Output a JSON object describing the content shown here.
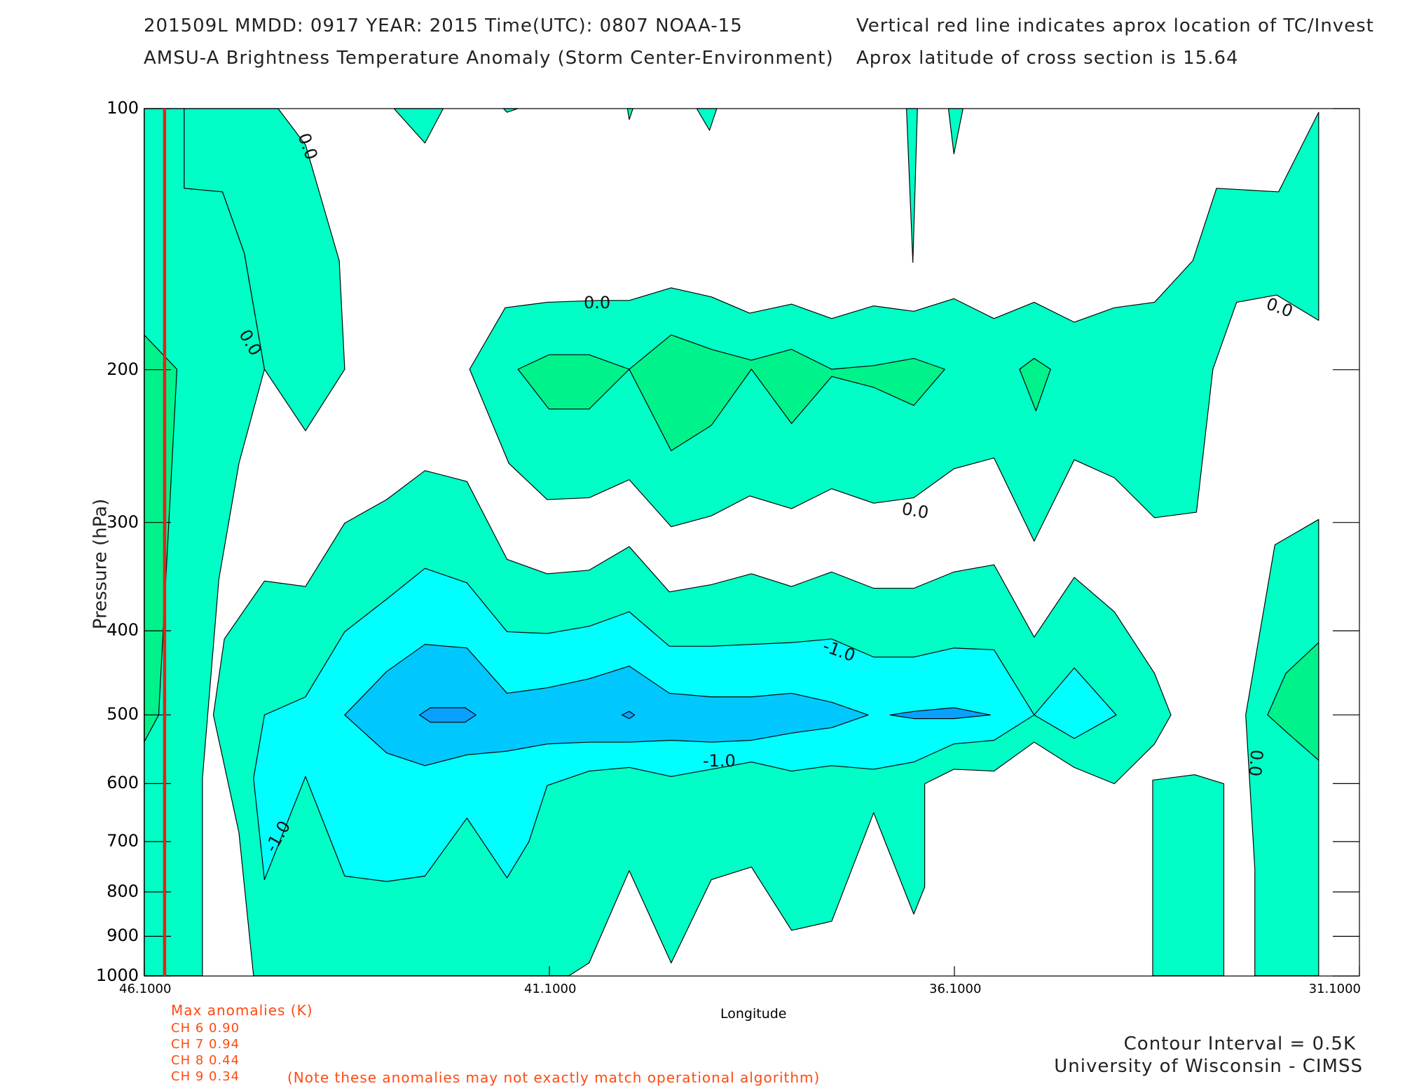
{
  "header": {
    "line1_left": "201509L  MMDD: 0917 YEAR: 2015 Time(UTC): 0807 NOAA-15",
    "line2_left": "AMSU-A Brightness Temperature Anomaly (Storm Center-Environment)",
    "line1_right": "Vertical red line indicates aprox location of TC/Invest",
    "line2_right": "Aprox latitude of cross section is 15.64"
  },
  "chart_data": {
    "type": "contour",
    "title": "AMSU-A Brightness Temperature Anomaly (Storm Center-Environment)",
    "xlabel": "Longitude",
    "ylabel": "Pressure (hPa)",
    "xlim": [
      46.1,
      31.1
    ],
    "ylim": [
      1000,
      100
    ],
    "y_scale": "log",
    "x_ticks": [
      "46.1000",
      "41.1000",
      "36.1000",
      "31.1000"
    ],
    "y_ticks": [
      "100",
      "200",
      "300",
      "400",
      "500",
      "600",
      "700",
      "800",
      "900",
      "1000"
    ],
    "tc_longitude": 45.85,
    "tc_line_color": "#e8201a",
    "contour_interval_K": 0.5,
    "contour_labels": [
      "0.0",
      "0.0",
      "0.0",
      "0.0",
      "0.0",
      "0.0",
      "-1.0",
      "-1.0",
      "-1.0"
    ],
    "fill_levels": [
      {
        "range": "0.0 to 0.5",
        "color": "#00ffc6"
      },
      {
        "range": "0.5 to 1.0",
        "color": "#00f28a"
      },
      {
        "range": "-0.5 to 0.0",
        "color": "#00ffc6"
      },
      {
        "range": "-1.0 to -0.5",
        "color": "#00ffff"
      },
      {
        "range": "-1.5 to -1.0",
        "color": "#00c8ff"
      },
      {
        "range": "-2.0 to -1.5",
        "color": "#0aa0ff"
      }
    ],
    "features": [
      {
        "name": "lower-tropospheric cold anomaly core",
        "pressure_hPa": 500,
        "lon_range": [
          44.6,
          36.6
        ],
        "min_K": -2.0
      },
      {
        "name": "upper-tropospheric warm anomaly",
        "pressure_hPa": 200,
        "lon_range": [
          41.7,
          35.9
        ],
        "max_K": 0.5
      },
      {
        "name": "warm anomaly near storm",
        "pressure_hPa": 250,
        "lon_range": [
          46.1,
          45.8
        ],
        "max_K": 0.5
      },
      {
        "name": "warm anomaly east edge",
        "pressure_hPa": 500,
        "lon_range": [
          31.6,
          31.1
        ],
        "max_K": 0.5
      }
    ]
  },
  "max_anomalies": {
    "title": "Max anomalies (K)",
    "rows": [
      "CH 6  0.90",
      "CH 7  0.94",
      "CH 8  0.44",
      "CH 9  0.34"
    ],
    "note": "(Note these anomalies may not exactly match operational algorithm)"
  },
  "footer": {
    "contour_interval": "Contour Interval = 0.5K",
    "credit": "University of Wisconsin - CIMSS"
  }
}
